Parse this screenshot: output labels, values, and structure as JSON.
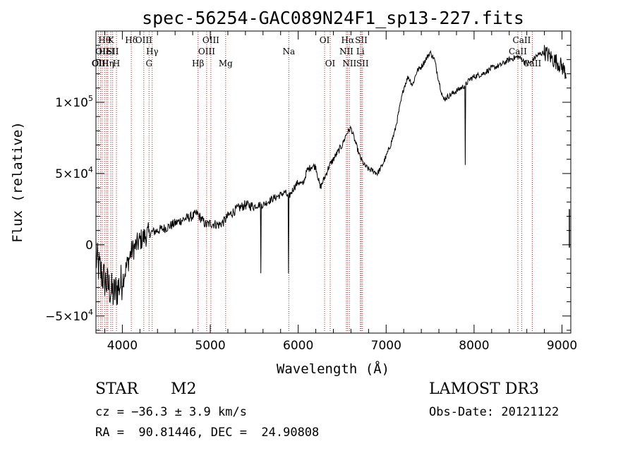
{
  "chart_data": {
    "type": "line",
    "title": "spec-56254-GAC089N24F1_sp13-227.fits",
    "xlabel": "Wavelength (Å)",
    "ylabel": "Flux (relative)",
    "xlim": [
      3700,
      9100
    ],
    "ylim": [
      -62000,
      150000
    ],
    "x_ticks": [
      {
        "value": 4000,
        "label": "4000"
      },
      {
        "value": 5000,
        "label": "5000"
      },
      {
        "value": 6000,
        "label": "6000"
      },
      {
        "value": 7000,
        "label": "7000"
      },
      {
        "value": 8000,
        "label": "8000"
      },
      {
        "value": 9000,
        "label": "9000"
      }
    ],
    "y_ticks": [
      {
        "value": -50000,
        "mant": "−5×10",
        "exp": "4"
      },
      {
        "value": 0,
        "mant": "0",
        "exp": ""
      },
      {
        "value": 50000,
        "mant": "5×10",
        "exp": "4"
      },
      {
        "value": 100000,
        "mant": "1×10",
        "exp": "5"
      }
    ],
    "series": [
      {
        "name": "flux",
        "x": [
          3700,
          3760,
          3800,
          3850,
          3900,
          3950,
          4000,
          4050,
          4100,
          4200,
          4300,
          4400,
          4500,
          4600,
          4700,
          4800,
          4850,
          4900,
          4950,
          5000,
          5100,
          5150,
          5200,
          5300,
          5400,
          5500,
          5550,
          5600,
          5700,
          5800,
          5850,
          5890,
          5950,
          6000,
          6050,
          6100,
          6150,
          6200,
          6250,
          6300,
          6350,
          6400,
          6450,
          6500,
          6550,
          6600,
          6650,
          6700,
          6750,
          6800,
          6850,
          6900,
          6950,
          7000,
          7050,
          7100,
          7150,
          7200,
          7250,
          7300,
          7350,
          7400,
          7450,
          7500,
          7550,
          7600,
          7650,
          7700,
          7750,
          7800,
          7850,
          7900,
          7950,
          8000,
          8100,
          8200,
          8300,
          8400,
          8500,
          8550,
          8600,
          8650,
          8700,
          8750,
          8800,
          8850,
          8900,
          8950,
          9000,
          9050
        ],
        "y": [
          -10000,
          -20000,
          -25000,
          -30000,
          -35000,
          -30000,
          -25000,
          -15000,
          -5000,
          3000,
          8000,
          10000,
          12000,
          15000,
          18000,
          20000,
          22000,
          18000,
          14000,
          15000,
          14000,
          16000,
          20000,
          25000,
          28000,
          27000,
          28000,
          28000,
          32000,
          35000,
          37000,
          33000,
          40000,
          44000,
          42000,
          52000,
          55000,
          55000,
          40000,
          47000,
          55000,
          60000,
          65000,
          70000,
          78000,
          82000,
          72000,
          62000,
          56000,
          53000,
          52000,
          50000,
          55000,
          62000,
          70000,
          80000,
          95000,
          110000,
          118000,
          112000,
          122000,
          125000,
          130000,
          135000,
          130000,
          115000,
          102000,
          104000,
          106000,
          108000,
          110000,
          112000,
          116000,
          118000,
          120000,
          124000,
          126000,
          130000,
          132000,
          130000,
          127000,
          128000,
          132000,
          134000,
          135000,
          133000,
          130000,
          128000,
          125000,
          120000
        ]
      }
    ],
    "spikes": [
      {
        "x": 5577,
        "y": -20000
      },
      {
        "x": 5890,
        "y": -20000
      },
      {
        "x": 7900,
        "y": 56000
      }
    ],
    "lines": [
      {
        "wl": 3727,
        "label": "OII",
        "row": 3
      },
      {
        "wl": 3751,
        "label": "OIII",
        "row": 3
      },
      {
        "wl": 3771,
        "label": "OII",
        "row": 2
      },
      {
        "wl": 3798,
        "label": "Hθ",
        "row": 1
      },
      {
        "wl": 3820,
        "label": "HeI",
        "row": 2
      },
      {
        "wl": 3835,
        "label": "Hη",
        "row": 3
      },
      {
        "wl": 3869,
        "label": "K",
        "row": 1
      },
      {
        "wl": 3890,
        "label": "SII",
        "row": 2
      },
      {
        "wl": 3933,
        "label": "H",
        "row": 3
      },
      {
        "wl": 4102,
        "label": "Hδ",
        "row": 1
      },
      {
        "wl": 4244,
        "label": "OIII",
        "row": 1
      },
      {
        "wl": 4304,
        "label": "G",
        "row": 3
      },
      {
        "wl": 4340,
        "label": "Hγ",
        "row": 2
      },
      {
        "wl": 4861,
        "label": "Hβ",
        "row": 3
      },
      {
        "wl": 4959,
        "label": "OIII",
        "row": 2
      },
      {
        "wl": 5007,
        "label": "OIII",
        "row": 1
      },
      {
        "wl": 5175,
        "label": "Mg",
        "row": 3
      },
      {
        "wl": 5893,
        "label": "Na",
        "row": 2
      },
      {
        "wl": 6300,
        "label": "OI",
        "row": 1
      },
      {
        "wl": 6364,
        "label": "OI",
        "row": 3
      },
      {
        "wl": 6548,
        "label": "NII",
        "row": 2
      },
      {
        "wl": 6563,
        "label": "Hα",
        "row": 1
      },
      {
        "wl": 6583,
        "label": "NII",
        "row": 3
      },
      {
        "wl": 6707,
        "label": "Li",
        "row": 2
      },
      {
        "wl": 6717,
        "label": "SII",
        "row": 1
      },
      {
        "wl": 6731,
        "label": "SII",
        "row": 3
      },
      {
        "wl": 8498,
        "label": "CaII",
        "row": 2
      },
      {
        "wl": 8542,
        "label": "CaII",
        "row": 1
      },
      {
        "wl": 8662,
        "label": "CaII",
        "row": 3
      }
    ]
  },
  "info": {
    "object_class": "STAR",
    "subclass": "M2",
    "survey": "LAMOST DR3",
    "cz": "cz = −36.3 ± 3.9 km/s",
    "obs_date": "Obs-Date: 20121122",
    "coords": "RA =  90.81446, DEC =  24.90808"
  }
}
